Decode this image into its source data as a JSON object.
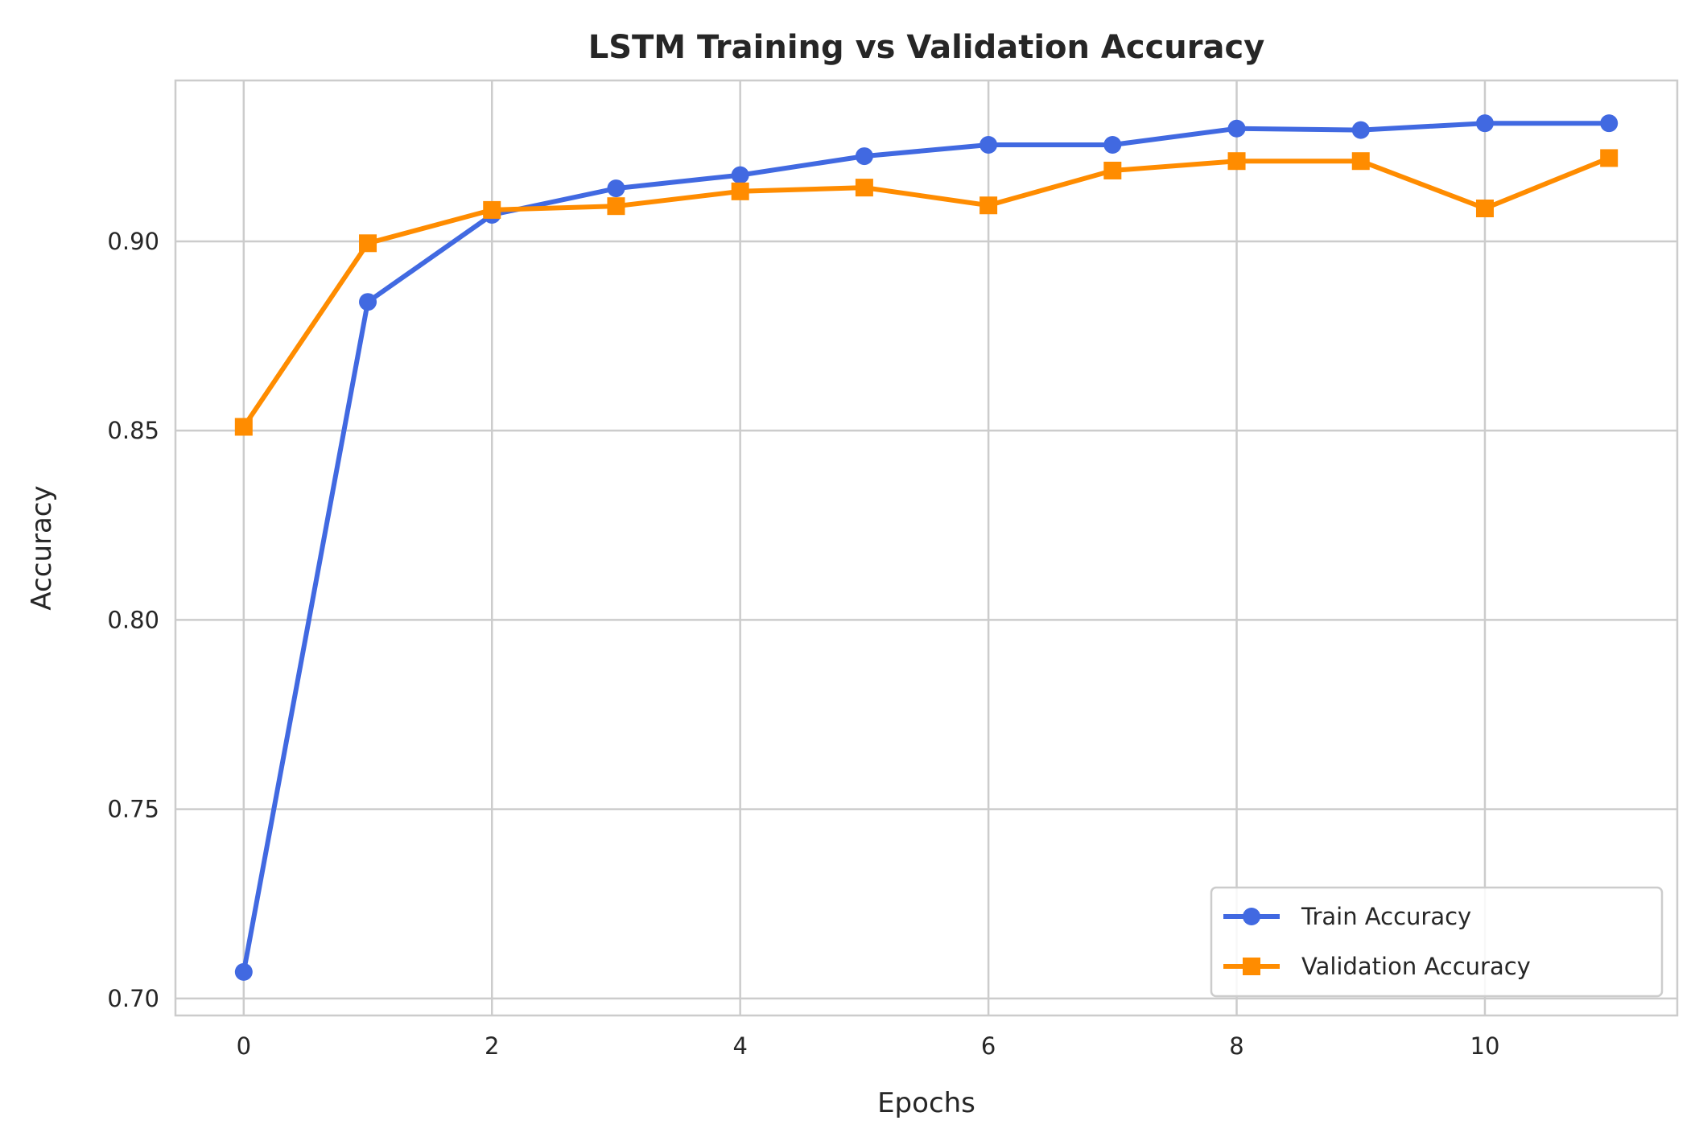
{
  "chart_data": {
    "type": "line",
    "title": "LSTM Training vs Validation Accuracy",
    "xlabel": "Epochs",
    "ylabel": "Accuracy",
    "xlim": [
      -0.55,
      11.55
    ],
    "ylim": [
      0.6955,
      0.9425
    ],
    "xticks": [
      0,
      2,
      4,
      6,
      8,
      10
    ],
    "xtick_labels": [
      "0",
      "2",
      "4",
      "6",
      "8",
      "10"
    ],
    "yticks": [
      0.7,
      0.75,
      0.8,
      0.85,
      0.9
    ],
    "ytick_labels": [
      "0.70",
      "0.75",
      "0.80",
      "0.85",
      "0.90"
    ],
    "grid": true,
    "legend_position": "lower-right",
    "x": [
      0,
      1,
      2,
      3,
      4,
      5,
      6,
      7,
      8,
      9,
      10,
      11
    ],
    "series": [
      {
        "name": "Train Accuracy",
        "color": "#4169e1",
        "marker": "circle",
        "values": [
          0.707,
          0.884,
          0.907,
          0.914,
          0.9175,
          0.9225,
          0.9255,
          0.9255,
          0.9298,
          0.9294,
          0.9312,
          0.9312
        ]
      },
      {
        "name": "Validation Accuracy",
        "color": "#ff8c00",
        "marker": "square",
        "values": [
          0.851,
          0.8995,
          0.9083,
          0.9093,
          0.9132,
          0.9142,
          0.9095,
          0.9187,
          0.9212,
          0.9212,
          0.9087,
          0.922
        ]
      }
    ]
  }
}
